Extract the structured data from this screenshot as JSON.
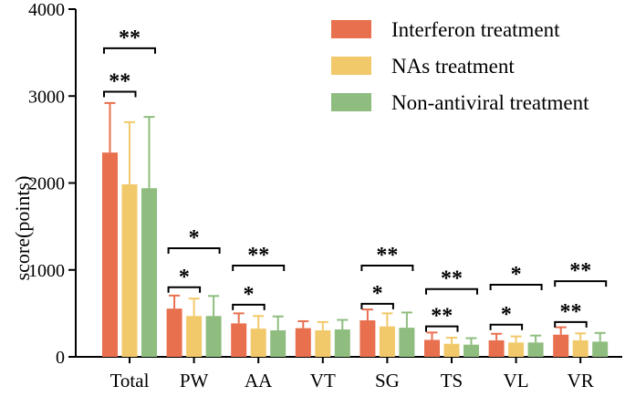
{
  "chart_data": {
    "type": "bar",
    "ylabel": "score(points)",
    "ylim": [
      0,
      4000
    ],
    "yticks": [
      "0",
      "1000",
      "2000",
      "3000",
      "4000"
    ],
    "categories": [
      "Total",
      "PW",
      "AA",
      "VT",
      "SG",
      "TS",
      "VL",
      "VR"
    ],
    "legend_position": "top-right",
    "series": [
      {
        "name": "Interferon treatment",
        "color": "#e8704f",
        "values": [
          2350,
          555,
          385,
          330,
          420,
          195,
          190,
          255
        ],
        "errors": [
          570,
          150,
          115,
          80,
          125,
          85,
          75,
          85
        ]
      },
      {
        "name": "NAs treatment",
        "color": "#f1c96a",
        "values": [
          1985,
          470,
          325,
          305,
          350,
          150,
          165,
          190
        ],
        "errors": [
          715,
          200,
          145,
          95,
          150,
          70,
          70,
          80
        ]
      },
      {
        "name": "Non-antiviral treatment",
        "color": "#8fbd7f",
        "values": [
          1940,
          470,
          305,
          315,
          335,
          140,
          165,
          175
        ],
        "errors": [
          820,
          230,
          160,
          110,
          175,
          75,
          80,
          100
        ]
      }
    ],
    "significance": [
      {
        "category": "Total",
        "from": 0,
        "to": 1,
        "label": "**",
        "y": 3050
      },
      {
        "category": "Total",
        "from": 0,
        "to": 2,
        "label": "**",
        "y": 3550
      },
      {
        "category": "PW",
        "from": 0,
        "to": 1,
        "label": "*",
        "y": 800
      },
      {
        "category": "PW",
        "from": 0,
        "to": 2,
        "label": "*",
        "y": 1250
      },
      {
        "category": "AA",
        "from": 0,
        "to": 1,
        "label": "*",
        "y": 600
      },
      {
        "category": "AA",
        "from": 0,
        "to": 2,
        "label": "**",
        "y": 1050
      },
      {
        "category": "SG",
        "from": 0,
        "to": 1,
        "label": "*",
        "y": 610
      },
      {
        "category": "SG",
        "from": 0,
        "to": 2,
        "label": "**",
        "y": 1050
      },
      {
        "category": "TS",
        "from": 0,
        "to": 1,
        "label": "**",
        "y": 350
      },
      {
        "category": "TS",
        "from": 0,
        "to": 2,
        "label": "**",
        "y": 780
      },
      {
        "category": "VL",
        "from": 0,
        "to": 1,
        "label": "*",
        "y": 370
      },
      {
        "category": "VL",
        "from": 0,
        "to": 2,
        "label": "*",
        "y": 830
      },
      {
        "category": "VR",
        "from": 0,
        "to": 1,
        "label": "**",
        "y": 400
      },
      {
        "category": "VR",
        "from": 0,
        "to": 2,
        "label": "**",
        "y": 870
      }
    ]
  }
}
